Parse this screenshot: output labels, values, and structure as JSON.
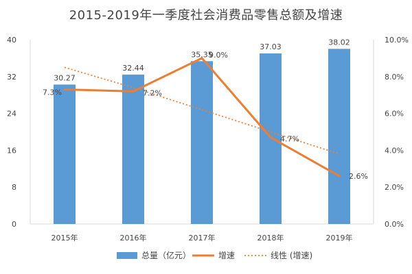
{
  "chart_data": {
    "type": "bar",
    "title": "2015-2019年一季度社会消费品零售总额及增速",
    "categories": [
      "2015年",
      "2016年",
      "2017年",
      "2018年",
      "2019年"
    ],
    "series": [
      {
        "name": "总量（亿元）",
        "type": "bar",
        "axis": "left",
        "values": [
          30.27,
          32.44,
          35.35,
          37.03,
          38.02
        ],
        "labels": [
          "30.27",
          "32.44",
          "35.35",
          "37.03",
          "38.02"
        ],
        "color": "#5b9bd5"
      },
      {
        "name": "增速",
        "type": "line",
        "axis": "right",
        "values": [
          7.3,
          7.2,
          9.0,
          4.7,
          2.6
        ],
        "labels": [
          "7.3%",
          "7.2%",
          "9.0%",
          "4.7%",
          "2.6%"
        ],
        "color": "#ed7d31"
      },
      {
        "name": "线性 (增速)",
        "type": "trendline",
        "axis": "right",
        "values": [
          8.5,
          7.4,
          6.2,
          5.0,
          3.8
        ],
        "color": "#ed7d31"
      }
    ],
    "yLeft": {
      "ylim": [
        0,
        40
      ],
      "ticks": [
        0,
        8,
        16,
        24,
        32,
        40
      ],
      "tick_labels": [
        "0",
        "8",
        "16",
        "24",
        "32",
        "40"
      ]
    },
    "yRight": {
      "ylim": [
        0,
        10
      ],
      "ticks": [
        0,
        2,
        4,
        6,
        8,
        10
      ],
      "tick_labels": [
        "0.0%",
        "2.0%",
        "4.0%",
        "6.0%",
        "8.0%",
        "10.0%"
      ]
    },
    "grid": false,
    "legend": "bottom"
  }
}
